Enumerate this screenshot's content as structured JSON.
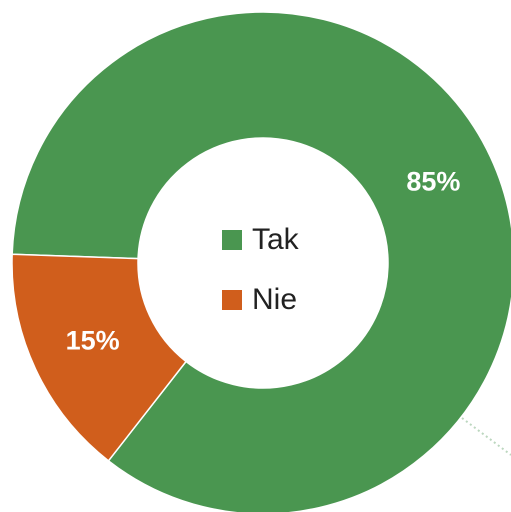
{
  "chart_data": {
    "type": "donut",
    "categories": [
      "Tak",
      "Nie"
    ],
    "values": [
      85,
      15
    ],
    "value_labels": [
      "85%",
      "15%"
    ],
    "colors": [
      "#4a9650",
      "#d05e1c"
    ],
    "legend": "center"
  }
}
